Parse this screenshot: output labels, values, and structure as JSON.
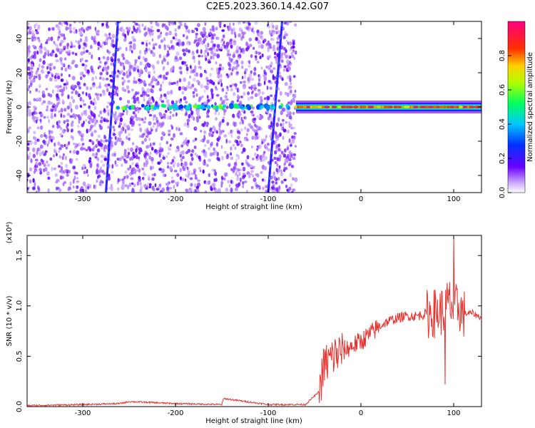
{
  "title": "C2E5.2023.360.14.42.G07",
  "chart_data": [
    {
      "type": "heatmap",
      "xlabel": "Height of straight line (km)",
      "ylabel": "Frequency (Hz)",
      "xlim": [
        -360,
        130
      ],
      "ylim": [
        -50,
        50
      ],
      "xticks": [
        -300,
        -200,
        -100,
        0,
        100
      ],
      "yticks": [
        -40,
        -20,
        0,
        20,
        40
      ],
      "colorbar": {
        "label": "Normalized spectral amplitude",
        "range": [
          0,
          1
        ],
        "ticks": [
          "0.0",
          "0.2",
          "0.4",
          "0.6",
          "0.8"
        ]
      },
      "features": {
        "noise_region_x": [
          -360,
          -70
        ],
        "carrier_line_freq_hz": 0,
        "carrier_strong_from_x": -70,
        "slanted_lines": [
          {
            "x_at_bottom": -275,
            "x_at_top": -262
          },
          {
            "x_at_bottom": -100,
            "x_at_top": -85
          }
        ]
      }
    },
    {
      "type": "line",
      "xlabel": "Height of straight line (km)",
      "ylabel": "SNR (10 * v/v)",
      "scale_note": "(x10⁴)",
      "xlim": [
        -360,
        130
      ],
      "ylim": [
        0,
        1.7
      ],
      "xticks": [
        -300,
        -200,
        -100,
        0,
        100
      ],
      "yticks": [
        0.0,
        0.5,
        1.0,
        1.5
      ],
      "series": [
        {
          "color": "#e8322f",
          "x": [
            -360,
            -300,
            -260,
            -250,
            -200,
            -150,
            -148,
            -100,
            -60,
            -45,
            -40,
            -35,
            -30,
            -20,
            -10,
            0,
            10,
            20,
            30,
            40,
            50,
            60,
            70,
            80,
            90,
            95,
            100,
            105,
            110,
            120,
            130
          ],
          "y": [
            0.01,
            0.02,
            0.03,
            0.05,
            0.03,
            0.02,
            0.08,
            0.02,
            0.02,
            0.15,
            0.4,
            0.45,
            0.5,
            0.55,
            0.6,
            0.65,
            0.72,
            0.8,
            0.85,
            0.88,
            0.9,
            0.9,
            0.92,
            0.93,
            0.95,
            1.05,
            0.95,
            1.0,
            0.92,
            0.93,
            0.88
          ]
        }
      ]
    }
  ]
}
